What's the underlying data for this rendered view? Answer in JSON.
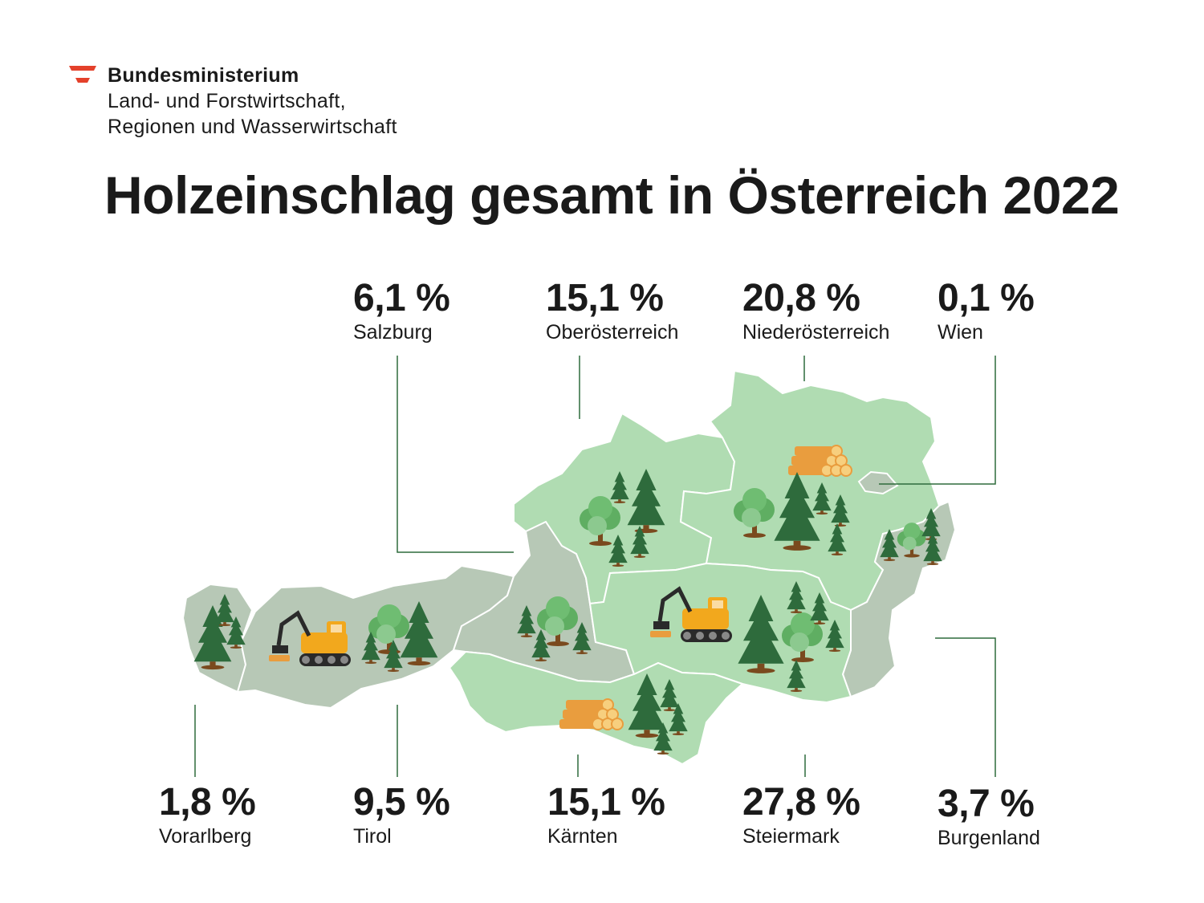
{
  "header": {
    "ministry_line1": "Bundesministerium",
    "ministry_line2": "Land- und Forstwirtschaft,",
    "ministry_line3": "Regionen und Wasserwirtschaft"
  },
  "title": "Holzeinschlag gesamt in Österreich 2022",
  "regions": [
    {
      "name": "Salzburg",
      "value_label": "6,1 %",
      "share": 6.1
    },
    {
      "name": "Oberösterreich",
      "value_label": "15,1 %",
      "share": 15.1
    },
    {
      "name": "Niederösterreich",
      "value_label": "20,8 %",
      "share": 20.8
    },
    {
      "name": "Wien",
      "value_label": "0,1 %",
      "share": 0.1
    },
    {
      "name": "Vorarlberg",
      "value_label": "1,8 %",
      "share": 1.8
    },
    {
      "name": "Tirol",
      "value_label": "9,5 %",
      "share": 9.5
    },
    {
      "name": "Kärnten",
      "value_label": "15,1 %",
      "share": 15.1
    },
    {
      "name": "Steiermark",
      "value_label": "27,8 %",
      "share": 27.8
    },
    {
      "name": "Burgenland",
      "value_label": "3,7 %",
      "share": 3.7
    }
  ],
  "colors": {
    "light_green": "#b0dcb2",
    "grey_green": "#b7c8b6",
    "dark_tree": "#2e6b3c",
    "leader_line": "#2e6b3c",
    "trunk": "#7a4a1e",
    "log": "#f0b25a",
    "machine": "#f2a81d",
    "flag_red": "#e4412b"
  }
}
